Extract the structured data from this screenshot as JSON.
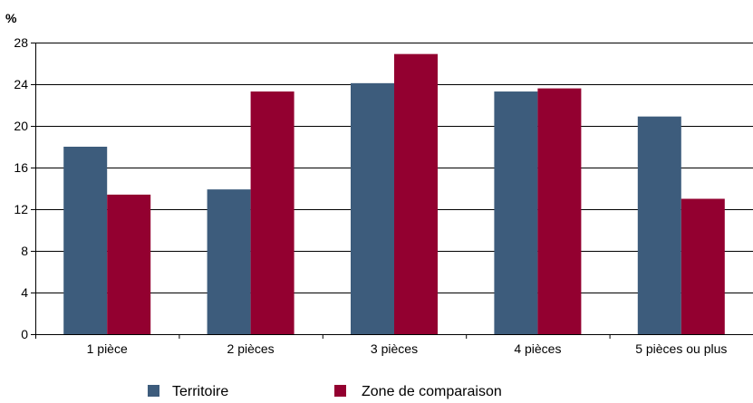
{
  "chart_data": {
    "type": "bar",
    "unit_label": "%",
    "categories": [
      "1 pièce",
      "2 pièces",
      "3 pièces",
      "4 pièces",
      "5 pièces ou plus"
    ],
    "series": [
      {
        "name": "Territoire",
        "color": "#3d5c7c",
        "values": [
          18.0,
          13.9,
          24.1,
          23.3,
          20.9
        ]
      },
      {
        "name": "Zone de comparaison",
        "color": "#930030",
        "values": [
          13.4,
          23.3,
          26.9,
          23.6,
          13.0
        ]
      }
    ],
    "ylim": [
      0,
      28
    ],
    "yticks": [
      0,
      4,
      8,
      12,
      16,
      20,
      24,
      28
    ],
    "grid": "horizontal",
    "legend_position": "bottom"
  }
}
